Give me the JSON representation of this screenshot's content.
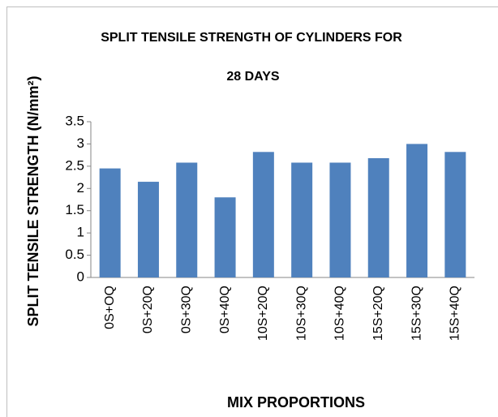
{
  "chart_data": {
    "type": "bar",
    "title": "SPLIT TENSILE  STRENGTH OF CYLINDERS FOR",
    "subtitle": "28 DAYS",
    "y_label": "SPLIT TENSILE STRENGTH (N/mm²)",
    "x_label": "MIX PROPORTIONS",
    "categories": [
      "0S+OQ",
      "0S+20Q",
      "0S+30Q",
      "0S+40Q",
      "10S+20Q",
      "10S+30Q",
      "10S+40Q",
      "15S+20Q",
      "15S+30Q",
      "15S+40Q"
    ],
    "values": [
      2.45,
      2.15,
      2.58,
      1.8,
      2.82,
      2.58,
      2.58,
      2.68,
      3.0,
      2.82
    ],
    "color": "#4f81bd",
    "ylim": [
      0,
      3.5
    ],
    "yticks": [
      0,
      0.5,
      1,
      1.5,
      2,
      2.5,
      3,
      3.5
    ],
    "grid": false
  }
}
